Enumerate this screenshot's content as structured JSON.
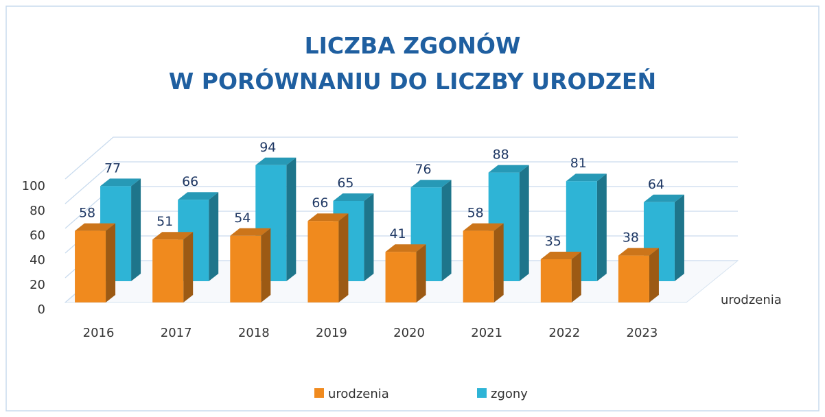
{
  "chart_data": {
    "type": "bar3d",
    "title": [
      "LICZBA ZGONÓW",
      "W PORÓWNANIU DO LICZBY URODZEŃ"
    ],
    "categories": [
      "2016",
      "2017",
      "2018",
      "2019",
      "2020",
      "2021",
      "2022",
      "2023"
    ],
    "series": [
      {
        "name": "urodzenia",
        "color": "#f08a1e",
        "values": [
          58,
          51,
          54,
          66,
          41,
          58,
          35,
          38
        ]
      },
      {
        "name": "zgony",
        "color": "#2eb4d6",
        "values": [
          77,
          66,
          94,
          65,
          76,
          88,
          81,
          64
        ]
      }
    ],
    "depth_label": "urodzenia",
    "ylim": [
      0,
      100
    ],
    "yticks": [
      0,
      20,
      40,
      60,
      80,
      100
    ],
    "grid": true,
    "legend": "bottom"
  }
}
